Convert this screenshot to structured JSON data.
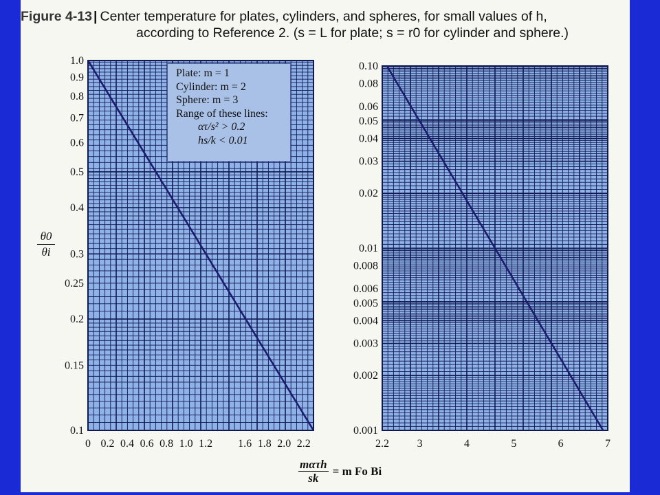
{
  "caption": {
    "figure_label": "Figure 4-13",
    "line1": "Center temperature for plates, cylinders, and spheres, for small values of h,",
    "line2": "according to Reference 2. (s = L for plate; s = r0 for cylinder and sphere.)"
  },
  "legend": {
    "plate": "Plate: m = 1",
    "cylinder": "Cylinder: m = 2",
    "sphere": "Sphere: m = 3",
    "range_title": "Range of these lines:",
    "cond1": "ατ/s² > 0.2",
    "cond2": "hs/k < 0.01"
  },
  "axis_labels": {
    "y_num": "θ0",
    "y_den": "θi",
    "x_num": "mατh",
    "x_den": "sk",
    "x_rest": "= m Fo Bi"
  },
  "colors": {
    "background": "#1a2bd6",
    "plot_fill": "#8fb2e8",
    "grid": "#101a50",
    "line": "#1c1c6e",
    "legend_box": "#a9c1e6"
  },
  "chart_data": [
    {
      "type": "line",
      "y_scale": "log",
      "xlim": [
        0,
        2.3
      ],
      "ylim": [
        0.1,
        1.0
      ],
      "x_tick_labels": [
        "0",
        "0.2",
        "0.4",
        "0.6",
        "0.8",
        "1.0",
        "1.2",
        "1.6",
        "1.8",
        "2.0",
        "2.2"
      ],
      "x_tick_values": [
        0,
        0.2,
        0.4,
        0.6,
        0.8,
        1.0,
        1.2,
        1.6,
        1.8,
        2.0,
        2.2
      ],
      "y_tick_labels": [
        "1.0",
        "0.9",
        "0.8",
        "0.7",
        "0.6",
        "0.5",
        "0.4",
        "0.3",
        "0.25",
        "0.2",
        "0.15",
        "0.1"
      ],
      "y_tick_values": [
        1.0,
        0.9,
        0.8,
        0.7,
        0.6,
        0.5,
        0.4,
        0.3,
        0.25,
        0.2,
        0.15,
        0.1
      ],
      "grid": true,
      "series": [
        {
          "x": [
            0,
            2.3
          ],
          "y": [
            1.0,
            0.1
          ]
        }
      ]
    },
    {
      "type": "line",
      "y_scale": "log",
      "xlim": [
        2.2,
        7
      ],
      "ylim": [
        0.001,
        0.1
      ],
      "x_tick_labels": [
        "2.2",
        "3",
        "4",
        "5",
        "6",
        "7"
      ],
      "x_tick_values": [
        2.2,
        3,
        4,
        5,
        6,
        7
      ],
      "y_tick_labels": [
        "0.10",
        "0.08",
        "0.06",
        "0.05",
        "0.04",
        "0.03",
        "0.02",
        "0.01",
        "0.008",
        "0.006",
        "0.005",
        "0.004",
        "0.003",
        "0.002",
        "0.001"
      ],
      "y_tick_values": [
        0.1,
        0.08,
        0.06,
        0.05,
        0.04,
        0.03,
        0.02,
        0.01,
        0.008,
        0.006,
        0.005,
        0.004,
        0.003,
        0.002,
        0.001
      ],
      "grid": true,
      "series": [
        {
          "x": [
            2.3,
            6.9
          ],
          "y": [
            0.1,
            0.001
          ]
        }
      ]
    }
  ]
}
